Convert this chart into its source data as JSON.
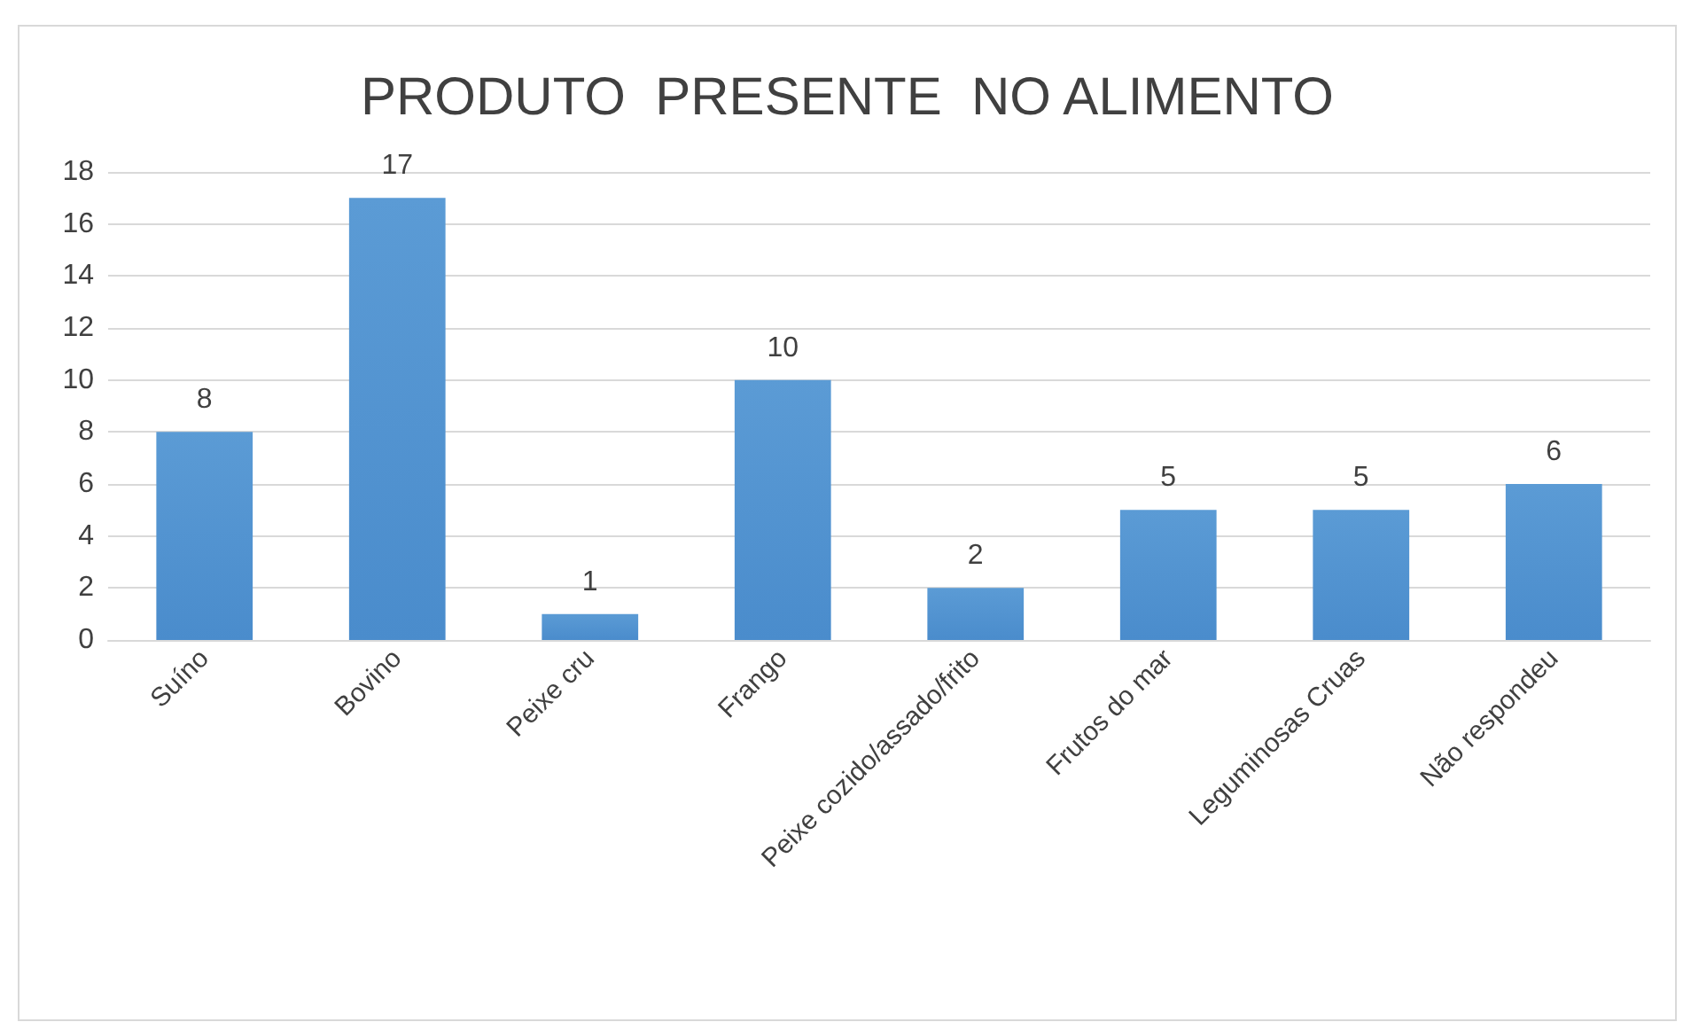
{
  "chart_data": {
    "type": "bar",
    "title": "PRODUTO  PRESENTE  NO ALIMENTO",
    "categories": [
      "Suíno",
      "Bovino",
      "Peixe cru",
      "Frango",
      "Peixe cozido/assado/frito",
      "Frutos do mar",
      "Leguminosas Cruas",
      "Não respondeu"
    ],
    "values": [
      8,
      17,
      1,
      10,
      2,
      5,
      5,
      6
    ],
    "color": "#5b9bd5",
    "ylim": [
      0,
      18
    ],
    "yticks": [
      0,
      2,
      4,
      6,
      8,
      10,
      12,
      14,
      16,
      18
    ],
    "grid": "y",
    "data_labels": true
  }
}
